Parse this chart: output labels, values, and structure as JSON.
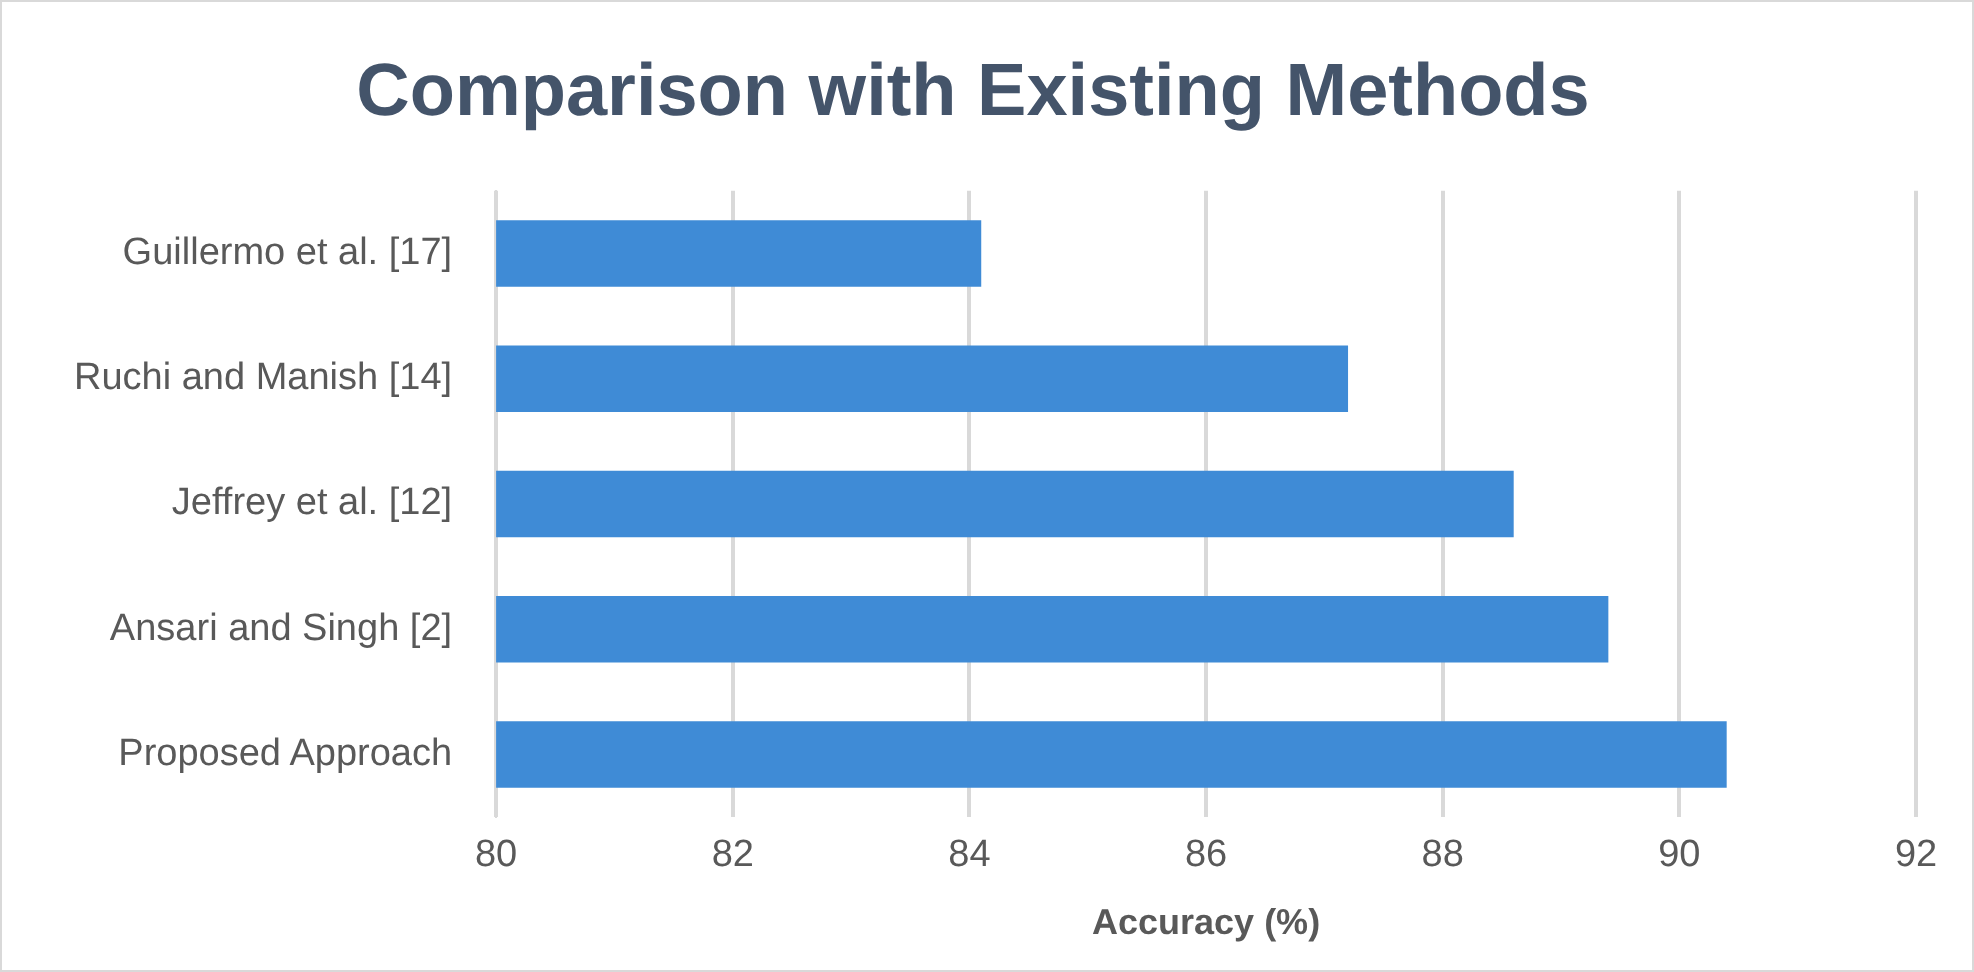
{
  "chart_data": {
    "type": "bar",
    "orientation": "horizontal",
    "title": "Comparison with Existing Methods",
    "xlabel": "Accuracy (%)",
    "categories": [
      "Guillermo et al. [17]",
      "Ruchi and Manish [14]",
      "Jeffrey et al. [12]",
      "Ansari and Singh [2]",
      "Proposed Approach"
    ],
    "values": [
      84.1,
      87.2,
      88.6,
      89.4,
      90.4
    ],
    "color": "#3f8bd6",
    "xlim": [
      80,
      92
    ],
    "xticks": [
      80,
      82,
      84,
      86,
      88,
      90,
      92
    ],
    "grid": "x",
    "legend": false
  }
}
